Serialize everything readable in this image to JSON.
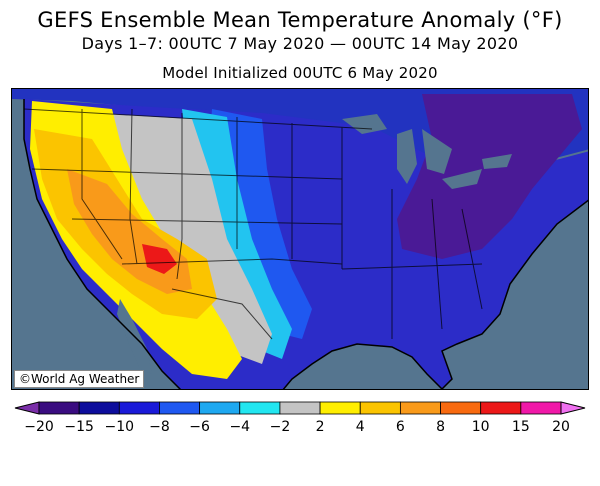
{
  "header": {
    "title": "GEFS Ensemble Mean Temperature Anomaly (°F)",
    "subtitle": "Days 1–7: 00UTC 7 May 2020 — 00UTC 14 May 2020",
    "init_line": "Model Initialized 00UTC 6 May 2020"
  },
  "map": {
    "credit": "©World Ag Weather",
    "ocean_color": "#55758f",
    "land_color": "#2c2cc8"
  },
  "legend": {
    "ticks": [
      "−20",
      "−15",
      "−10",
      "−8",
      "−6",
      "−4",
      "−2",
      "2",
      "4",
      "6",
      "8",
      "10",
      "15",
      "20"
    ],
    "colors": [
      "#7a2ea8",
      "#3a0c80",
      "#0d0d9c",
      "#1a1ad8",
      "#1f58f0",
      "#1ea8f0",
      "#22e6f0",
      "#c4c4c4",
      "#ffee00",
      "#fbc400",
      "#f99a1a",
      "#f86a10",
      "#ec1818",
      "#f018a8",
      "#f070f0"
    ]
  }
}
